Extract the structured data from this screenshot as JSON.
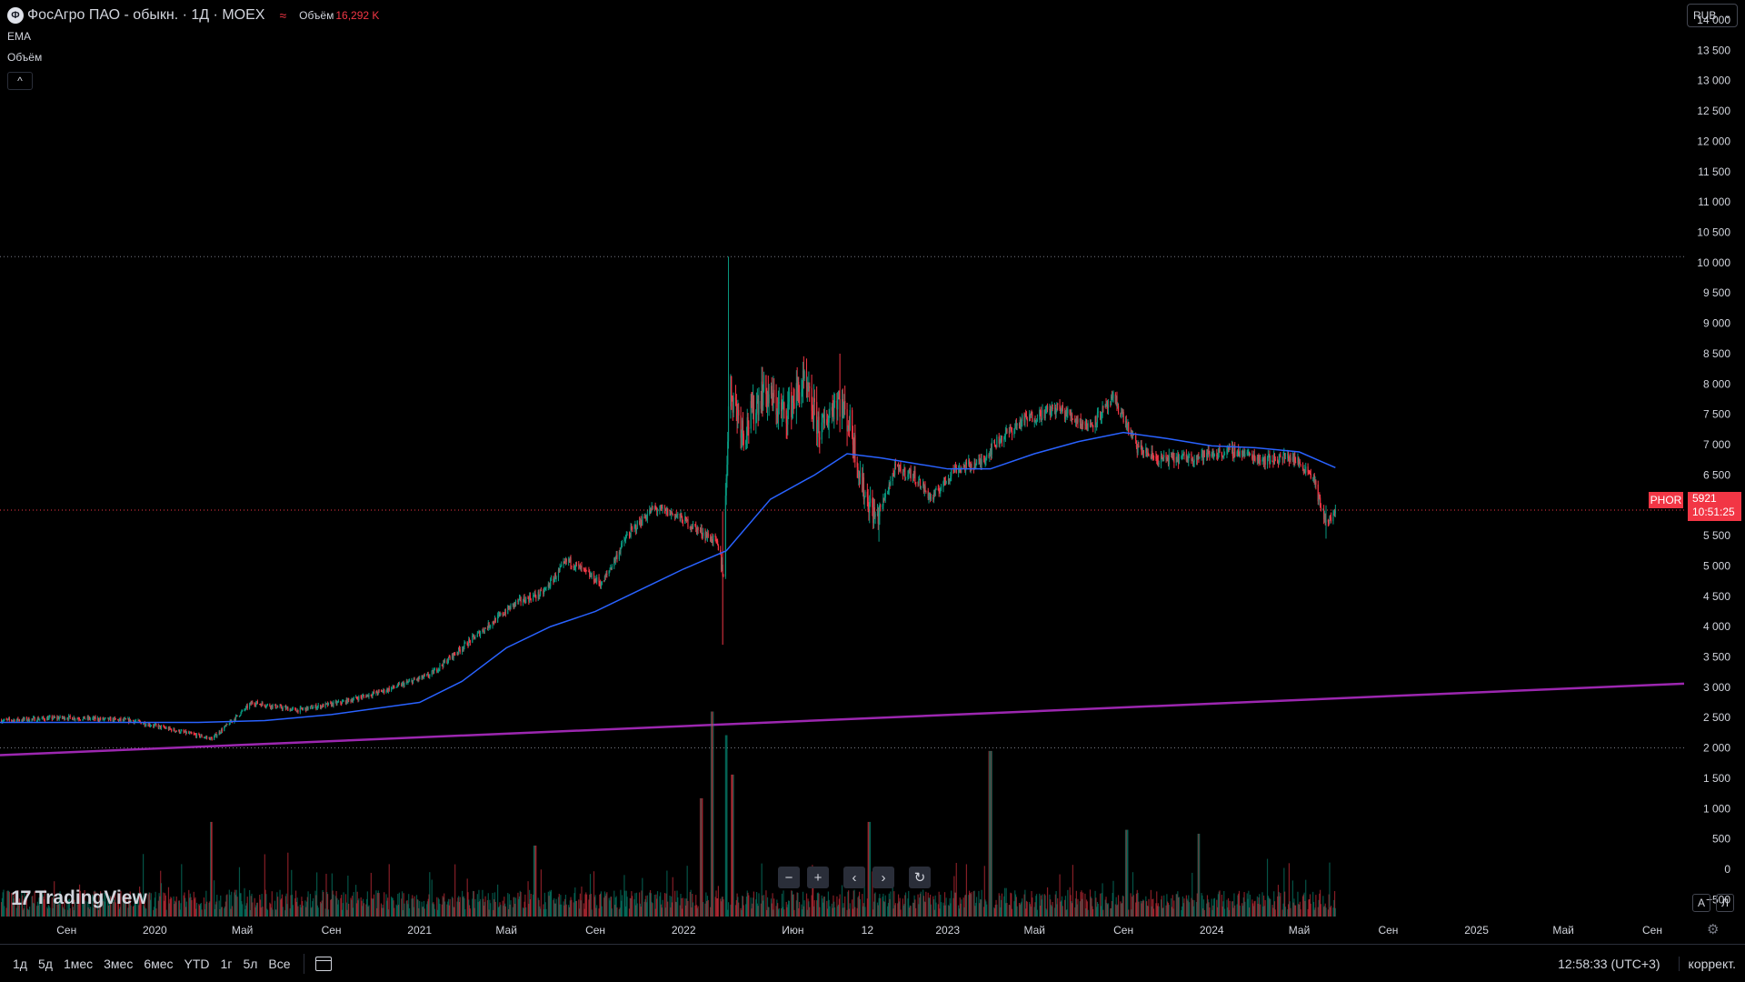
{
  "header": {
    "symbol_icon": "phosagro-logo-icon",
    "symbol_icon_glyph": "Ф",
    "title": "ФосАгро ПАО - обыкн. · 1Д · MOEX",
    "market_icon": "market-status-icon",
    "market_icon_glyph": "≈",
    "volume_label": "Объём",
    "volume_value": "16,292 K"
  },
  "indicators": {
    "ema_label": "EMA",
    "volume_label": "Объём",
    "collapse_glyph": "^"
  },
  "currency": {
    "value": "RUB",
    "chevron": "⌄"
  },
  "price_tags": {
    "symbol": "PHOR",
    "last_price": "5921",
    "countdown": "10:51:25"
  },
  "watermark": {
    "mark": "17",
    "text": "TradingView"
  },
  "nav_buttons": {
    "zoom_out": "−",
    "zoom_in": "+",
    "scroll_left": "‹",
    "scroll_right": "›",
    "reset": "↻"
  },
  "corner": {
    "auto_label": "A",
    "log_label": "Л",
    "settings_icon": "gear-icon",
    "settings_glyph": "⚙"
  },
  "bottom_bar": {
    "ranges": [
      "1д",
      "5д",
      "1мес",
      "3мес",
      "6мес",
      "YTD",
      "1г",
      "5л",
      "Все"
    ],
    "calendar_icon": "calendar-icon",
    "clock": "12:58:33 (UTC+3)",
    "adjust": "коррект."
  },
  "colors": {
    "background": "#000000",
    "up": "#089981",
    "down": "#f23645",
    "ema": "#2962ff",
    "trendline": "#9c27b0",
    "text": "#d1d4dc"
  },
  "chart_data": {
    "type": "candlestick",
    "symbol": "PHOR",
    "exchange": "MOEX",
    "interval": "1D",
    "currency": "RUB",
    "last_price": 5921,
    "y_axis": {
      "ticks": [
        14000,
        13500,
        13000,
        12500,
        12000,
        11500,
        11000,
        10500,
        10000,
        9500,
        9000,
        8500,
        8000,
        7500,
        7000,
        6500,
        6000,
        5500,
        5000,
        4500,
        4000,
        3500,
        3000,
        2500,
        2000,
        1500,
        1000,
        500,
        0,
        -500
      ],
      "tick_labels": [
        "14 000",
        "13 500",
        "13 000",
        "12 500",
        "12 000",
        "11 500",
        "11 000",
        "10 500",
        "10 000",
        "9 500",
        "9 000",
        "8 500",
        "8 000",
        "7 500",
        "7 000",
        "6 500",
        "6 000",
        "5 500",
        "5 000",
        "4 500",
        "4 000",
        "3 500",
        "3 000",
        "2 500",
        "2 000",
        "1 500",
        "1 000",
        "500",
        "0",
        "−500"
      ],
      "ylim": [
        -780,
        14300
      ],
      "horizontal_levels": [
        10100,
        2000
      ]
    },
    "x_axis": {
      "start": "2019-06-01",
      "end": "2025-10-15",
      "ticks": [
        {
          "date": "2019-09-01",
          "label": "Сен"
        },
        {
          "date": "2020-01-01",
          "label": "2020"
        },
        {
          "date": "2020-05-01",
          "label": "Май"
        },
        {
          "date": "2020-09-01",
          "label": "Сен"
        },
        {
          "date": "2021-01-01",
          "label": "2021"
        },
        {
          "date": "2021-05-01",
          "label": "Май"
        },
        {
          "date": "2021-09-01",
          "label": "Сен"
        },
        {
          "date": "2022-01-01",
          "label": "2022"
        },
        {
          "date": "2022-06-01",
          "label": "Июн"
        },
        {
          "date": "2022-09-12",
          "label": "12"
        },
        {
          "date": "2023-01-01",
          "label": "2023"
        },
        {
          "date": "2023-05-01",
          "label": "Май"
        },
        {
          "date": "2023-09-01",
          "label": "Сен"
        },
        {
          "date": "2024-01-01",
          "label": "2024"
        },
        {
          "date": "2024-05-01",
          "label": "Май"
        },
        {
          "date": "2024-09-01",
          "label": "Сен"
        },
        {
          "date": "2025-01-01",
          "label": "2025"
        },
        {
          "date": "2025-05-01",
          "label": "Май"
        },
        {
          "date": "2025-09-01",
          "label": "Сен"
        }
      ]
    },
    "price_path": [
      [
        "2019-06-01",
        2450
      ],
      [
        "2019-09-01",
        2500
      ],
      [
        "2019-12-01",
        2450
      ],
      [
        "2020-03-20",
        2150
      ],
      [
        "2020-05-15",
        2750
      ],
      [
        "2020-07-15",
        2620
      ],
      [
        "2020-09-15",
        2750
      ],
      [
        "2020-11-15",
        2950
      ],
      [
        "2021-01-15",
        3200
      ],
      [
        "2021-03-15",
        3800
      ],
      [
        "2021-05-15",
        4400
      ],
      [
        "2021-06-20",
        4550
      ],
      [
        "2021-07-25",
        5100
      ],
      [
        "2021-09-10",
        4700
      ],
      [
        "2021-10-15",
        5500
      ],
      [
        "2021-11-20",
        5950
      ],
      [
        "2021-12-20",
        5850
      ],
      [
        "2022-02-15",
        5400
      ],
      [
        "2022-02-25",
        4900
      ],
      [
        "2022-03-05",
        8000
      ],
      [
        "2022-03-25",
        7200
      ],
      [
        "2022-04-20",
        7900
      ],
      [
        "2022-05-20",
        7500
      ],
      [
        "2022-06-15",
        8000
      ],
      [
        "2022-07-10",
        7200
      ],
      [
        "2022-08-01",
        7800
      ],
      [
        "2022-08-20",
        7300
      ],
      [
        "2022-09-05",
        6300
      ],
      [
        "2022-09-25",
        5750
      ],
      [
        "2022-10-20",
        6600
      ],
      [
        "2022-11-15",
        6500
      ],
      [
        "2022-12-10",
        6100
      ],
      [
        "2023-01-10",
        6600
      ],
      [
        "2023-02-15",
        6700
      ],
      [
        "2023-03-10",
        7050
      ],
      [
        "2023-04-15",
        7400
      ],
      [
        "2023-06-01",
        7600
      ],
      [
        "2023-07-15",
        7300
      ],
      [
        "2023-08-20",
        7750
      ],
      [
        "2023-09-20",
        6950
      ],
      [
        "2023-10-20",
        6750
      ],
      [
        "2023-12-10",
        6800
      ],
      [
        "2024-02-01",
        6900
      ],
      [
        "2024-03-15",
        6750
      ],
      [
        "2024-04-20",
        6800
      ],
      [
        "2024-05-20",
        6500
      ],
      [
        "2024-06-01",
        5900
      ],
      [
        "2024-06-10",
        5700
      ],
      [
        "2024-06-20",
        5921
      ]
    ],
    "extreme_wicks": [
      {
        "date": "2022-02-24",
        "high": 5900,
        "low": 3700
      },
      {
        "date": "2022-03-04",
        "high": 10100,
        "low": 7200
      },
      {
        "date": "2022-08-05",
        "high": 8500,
        "low": 7400
      },
      {
        "date": "2022-09-28",
        "high": 6000,
        "low": 5400
      },
      {
        "date": "2024-06-07",
        "high": 6000,
        "low": 5450
      }
    ],
    "ema": {
      "name": "EMA",
      "points": [
        [
          "2019-06-01",
          2420
        ],
        [
          "2020-03-01",
          2420
        ],
        [
          "2020-06-01",
          2450
        ],
        [
          "2020-09-01",
          2550
        ],
        [
          "2021-01-01",
          2750
        ],
        [
          "2021-03-01",
          3100
        ],
        [
          "2021-05-01",
          3650
        ],
        [
          "2021-07-01",
          4000
        ],
        [
          "2021-09-01",
          4250
        ],
        [
          "2021-11-01",
          4600
        ],
        [
          "2022-01-01",
          4950
        ],
        [
          "2022-03-01",
          5250
        ],
        [
          "2022-05-01",
          6100
        ],
        [
          "2022-07-01",
          6500
        ],
        [
          "2022-08-15",
          6850
        ],
        [
          "2022-10-01",
          6780
        ],
        [
          "2023-01-01",
          6600
        ],
        [
          "2023-03-01",
          6600
        ],
        [
          "2023-05-01",
          6850
        ],
        [
          "2023-07-01",
          7050
        ],
        [
          "2023-09-01",
          7200
        ],
        [
          "2023-11-01",
          7100
        ],
        [
          "2024-01-01",
          6980
        ],
        [
          "2024-03-01",
          6950
        ],
        [
          "2024-05-01",
          6880
        ],
        [
          "2024-06-20",
          6620
        ]
      ]
    },
    "trendline": {
      "points": [
        [
          "2019-06-01",
          1880
        ],
        [
          "2025-10-15",
          3060
        ]
      ]
    },
    "volume": {
      "name": "Объём",
      "baseline_value": -780,
      "max_value": 2600,
      "spikes": [
        {
          "date": "2020-03-20",
          "value": 1200
        },
        {
          "date": "2021-06-10",
          "value": 900
        },
        {
          "date": "2022-01-25",
          "value": 1500
        },
        {
          "date": "2022-02-10",
          "value": 2600
        },
        {
          "date": "2022-02-28",
          "value": 2300
        },
        {
          "date": "2022-03-10",
          "value": 1800
        },
        {
          "date": "2022-09-15",
          "value": 1200
        },
        {
          "date": "2023-03-01",
          "value": 2100
        },
        {
          "date": "2023-09-05",
          "value": 1100
        },
        {
          "date": "2023-12-15",
          "value": 1050
        }
      ]
    }
  }
}
